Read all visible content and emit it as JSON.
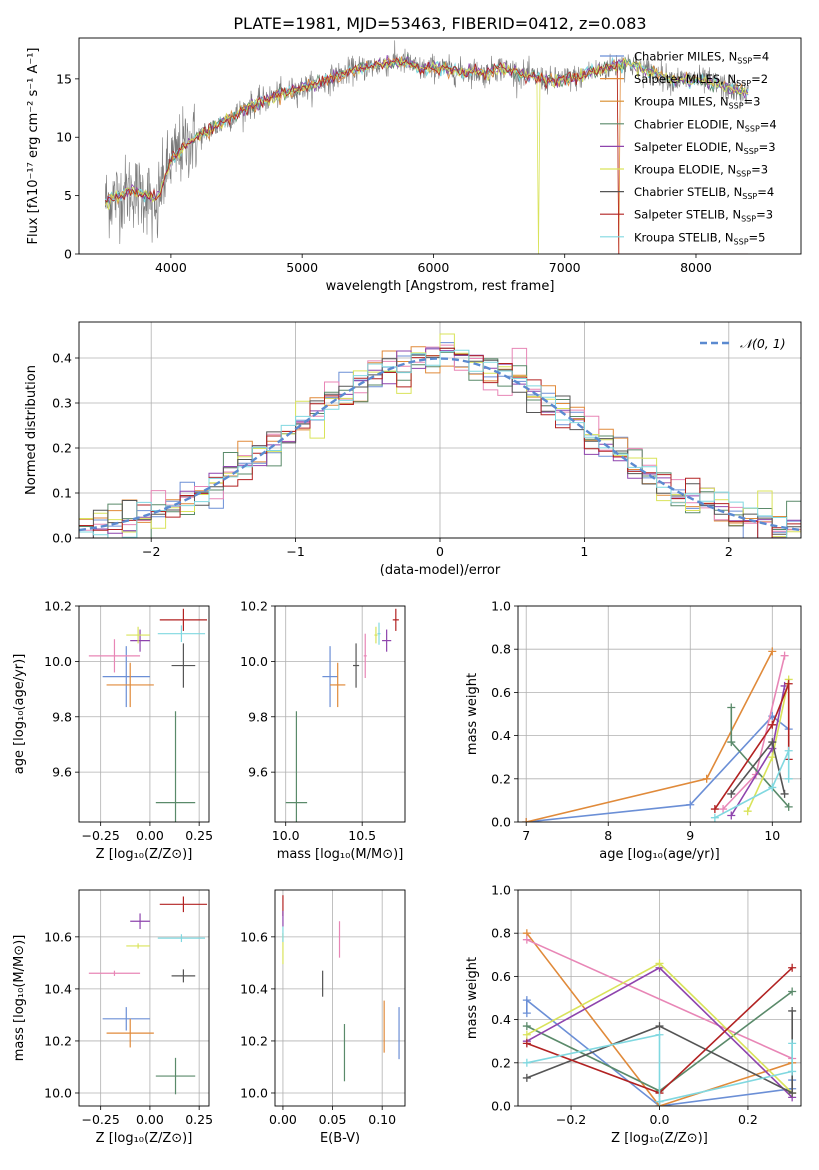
{
  "figure": {
    "title": "PLATE=1981, MJD=53463, FIBERID=0412, z=0.083"
  },
  "colors": {
    "chabrier_miles": "#6b8fd6",
    "salpeter_miles": "#e08a3a",
    "kroupa_miles": "#d98b2a",
    "chabrier_elodie": "#5a8a6a",
    "salpeter_elodie": "#8e44ad",
    "kroupa_elodie": "#d9e35a",
    "chabrier_stelib": "#555555",
    "salpeter_stelib": "#b22222",
    "kroupa_stelib": "#80d8e0",
    "pink": "#e886b6",
    "grid": "#b0b0b0"
  },
  "chart_data": [
    {
      "id": "spectrum",
      "type": "line",
      "xlabel": "wavelength [Angstrom, rest frame]",
      "ylabel": "Flux [fλ10⁻¹⁷ erg cm⁻² s⁻¹ A⁻¹]",
      "xlim": [
        3300,
        8800
      ],
      "ylim": [
        0,
        18.5
      ],
      "xticks": [
        "4000",
        "5000",
        "6000",
        "7000",
        "8000"
      ],
      "yticks": [
        "0",
        "5",
        "10",
        "15"
      ],
      "grid": false,
      "legend": "top-right",
      "legend_entries": [
        "Chabrier MILES, N_SSP=4",
        "Salpeter MILES, N_SSP=2",
        "Kroupa MILES, N_SSP=3",
        "Chabrier ELODIE, N_SSP=4",
        "Salpeter ELODIE, N_SSP=3",
        "Kroupa ELODIE, N_SSP=3",
        "Chabrier STELIB, N_SSP=4",
        "Salpeter STELIB, N_SSP=3",
        "Kroupa STELIB, N_SSP=5"
      ],
      "continuum": {
        "x": [
          3500,
          3600,
          3700,
          3800,
          3900,
          3950,
          4000,
          4100,
          4200,
          4300,
          4400,
          4500,
          4600,
          4700,
          4800,
          4900,
          5000,
          5100,
          5200,
          5300,
          5400,
          5500,
          5600,
          5700,
          5800,
          5900,
          6000,
          6100,
          6200,
          6300,
          6400,
          6500,
          6600,
          6700,
          6800,
          6900,
          7000,
          7100,
          7200,
          7300,
          7400,
          7500,
          7600,
          7700,
          7800,
          7900,
          8000,
          8100,
          8200,
          8300,
          8400
        ],
        "y": [
          4.5,
          5.0,
          5.5,
          5.0,
          4.8,
          6.5,
          8.0,
          9.3,
          10.0,
          10.6,
          11.3,
          12.0,
          12.7,
          13.1,
          13.6,
          13.9,
          14.2,
          14.5,
          14.9,
          15.4,
          15.8,
          16.0,
          16.2,
          16.5,
          16.4,
          15.8,
          16.0,
          15.8,
          15.6,
          15.7,
          15.4,
          16.0,
          15.7,
          15.3,
          15.1,
          14.8,
          15.0,
          15.1,
          15.6,
          15.8,
          16.2,
          16.3,
          15.8,
          15.5,
          15.0,
          14.9,
          15.0,
          14.7,
          14.4,
          14.0,
          13.7
        ]
      }
    },
    {
      "id": "residual_hist",
      "type": "line",
      "xlabel": "(data-model)/error",
      "ylabel": "Normed distribution",
      "xlim": [
        -2.5,
        2.5
      ],
      "ylim": [
        0,
        0.48
      ],
      "xticks": [
        "−2",
        "−1",
        "0",
        "1",
        "2"
      ],
      "yticks": [
        "0.0",
        "0.1",
        "0.2",
        "0.3",
        "0.4"
      ],
      "grid": true,
      "legend": "top-right",
      "legend_entries": [
        "𝒩(0, 1)"
      ],
      "bin_width": 0.1
    },
    {
      "id": "age_vs_Z",
      "type": "scatter",
      "xlabel": "Z [log₁₀(Z/Z⊙)]",
      "ylabel": "age  [log₁₀(age/yr)]",
      "xlim": [
        -0.36,
        0.3
      ],
      "ylim": [
        9.42,
        10.2
      ],
      "xticks": [
        "−0.25",
        "0.00",
        "0.25"
      ],
      "yticks": [
        "9.6",
        "9.8",
        "10.0",
        "10.2"
      ],
      "grid": true,
      "points": [
        {
          "x": -0.12,
          "y": 9.945,
          "xerr": 0.12,
          "yerr": 0.11,
          "color": "chabrier_miles"
        },
        {
          "x": -0.1,
          "y": 9.915,
          "xerr": 0.12,
          "yerr": 0.08,
          "color": "salpeter_miles"
        },
        {
          "x": -0.18,
          "y": 10.02,
          "xerr": 0.13,
          "yerr": 0.06,
          "color": "pink"
        },
        {
          "x": 0.13,
          "y": 9.49,
          "xerr": 0.1,
          "yerr": 0.33,
          "color": "chabrier_elodie"
        },
        {
          "x": -0.05,
          "y": 10.075,
          "xerr": 0.05,
          "yerr": 0.04,
          "color": "salpeter_elodie"
        },
        {
          "x": -0.06,
          "y": 10.095,
          "xerr": 0.06,
          "yerr": 0.03,
          "color": "kroupa_elodie"
        },
        {
          "x": 0.17,
          "y": 9.985,
          "xerr": 0.06,
          "yerr": 0.08,
          "color": "chabrier_stelib"
        },
        {
          "x": 0.17,
          "y": 10.15,
          "xerr": 0.12,
          "yerr": 0.04,
          "color": "salpeter_stelib"
        },
        {
          "x": 0.16,
          "y": 10.1,
          "xerr": 0.12,
          "yerr": 0.03,
          "color": "kroupa_stelib"
        }
      ]
    },
    {
      "id": "age_vs_mass",
      "type": "scatter",
      "xlabel": "mass [log₁₀(M/M⊙)]",
      "ylabel": "",
      "xlim": [
        9.93,
        10.78
      ],
      "ylim": [
        9.42,
        10.2
      ],
      "xticks": [
        "10.0",
        "10.5"
      ],
      "yticks": [
        "9.6",
        "9.8",
        "10.0",
        "10.2"
      ],
      "grid": true,
      "points": [
        {
          "x": 10.29,
          "y": 9.945,
          "xerr": 0.05,
          "yerr": 0.11,
          "color": "chabrier_miles"
        },
        {
          "x": 10.34,
          "y": 9.915,
          "xerr": 0.05,
          "yerr": 0.08,
          "color": "salpeter_miles"
        },
        {
          "x": 10.07,
          "y": 9.49,
          "xerr": 0.07,
          "yerr": 0.33,
          "color": "chabrier_elodie"
        },
        {
          "x": 10.46,
          "y": 9.985,
          "xerr": 0.02,
          "yerr": 0.08,
          "color": "chabrier_stelib"
        },
        {
          "x": 10.52,
          "y": 10.02,
          "xerr": 0.01,
          "yerr": 0.08,
          "color": "pink"
        },
        {
          "x": 10.66,
          "y": 10.075,
          "xerr": 0.03,
          "yerr": 0.04,
          "color": "salpeter_elodie"
        },
        {
          "x": 10.59,
          "y": 10.095,
          "xerr": 0.01,
          "yerr": 0.03,
          "color": "kroupa_elodie"
        },
        {
          "x": 10.61,
          "y": 10.1,
          "xerr": 0.01,
          "yerr": 0.04,
          "color": "kroupa_stelib"
        },
        {
          "x": 10.72,
          "y": 10.15,
          "xerr": 0.02,
          "yerr": 0.04,
          "color": "salpeter_stelib"
        }
      ]
    },
    {
      "id": "massweight_vs_age",
      "type": "line",
      "xlabel": "age  [log₁₀(age/yr)]",
      "ylabel": "mass weight",
      "xlim": [
        6.9,
        10.35
      ],
      "ylim": [
        0,
        1.0
      ],
      "xticks": [
        "7",
        "8",
        "9",
        "10"
      ],
      "yticks": [
        "0.0",
        "0.2",
        "0.4",
        "0.6",
        "0.8",
        "1.0"
      ],
      "grid": true,
      "series": [
        {
          "color": "chabrier_miles",
          "x": [
            7.0,
            9.0,
            10.0,
            10.2
          ],
          "y": [
            0.0,
            0.08,
            0.49,
            0.43
          ]
        },
        {
          "color": "salpeter_miles",
          "x": [
            7.0,
            9.2,
            10.0
          ],
          "y": [
            0.0,
            0.2,
            0.79
          ]
        },
        {
          "color": "pink",
          "x": [
            9.4,
            9.8,
            10.15
          ],
          "y": [
            0.06,
            0.22,
            0.77
          ]
        },
        {
          "color": "chabrier_elodie",
          "x": [
            9.5,
            9.5,
            10.2
          ],
          "y": [
            0.53,
            0.37,
            0.07
          ]
        },
        {
          "color": "salpeter_elodie",
          "x": [
            9.5,
            10.0,
            10.15
          ],
          "y": [
            0.03,
            0.34,
            0.63
          ]
        },
        {
          "color": "kroupa_elodie",
          "x": [
            9.7,
            10.0,
            10.2
          ],
          "y": [
            0.05,
            0.3,
            0.66
          ]
        },
        {
          "color": "chabrier_stelib",
          "x": [
            9.5,
            10.0,
            10.15
          ],
          "y": [
            0.13,
            0.37,
            0.13
          ]
        },
        {
          "color": "salpeter_stelib",
          "x": [
            9.3,
            10.0,
            10.2,
            10.2
          ],
          "y": [
            0.06,
            0.45,
            0.64,
            0.29
          ]
        },
        {
          "color": "kroupa_stelib",
          "x": [
            9.3,
            10.0,
            10.2,
            10.2
          ],
          "y": [
            0.02,
            0.16,
            0.33,
            0.2
          ]
        }
      ]
    },
    {
      "id": "mass_vs_Z",
      "type": "scatter",
      "xlabel": "Z [log₁₀(Z/Z⊙)]",
      "ylabel": "mass [log₁₀(M/M⊙)]",
      "xlim": [
        -0.36,
        0.3
      ],
      "ylim": [
        9.95,
        10.78
      ],
      "xticks": [
        "−0.25",
        "0.00",
        "0.25"
      ],
      "yticks": [
        "10.0",
        "10.2",
        "10.4",
        "10.6"
      ],
      "grid": true,
      "points": [
        {
          "x": -0.12,
          "y": 10.285,
          "xerr": 0.12,
          "yerr": 0.045,
          "color": "chabrier_miles"
        },
        {
          "x": -0.1,
          "y": 10.23,
          "xerr": 0.12,
          "yerr": 0.055,
          "color": "salpeter_miles"
        },
        {
          "x": -0.18,
          "y": 10.46,
          "xerr": 0.13,
          "yerr": 0.01,
          "color": "pink"
        },
        {
          "x": 0.13,
          "y": 10.065,
          "xerr": 0.1,
          "yerr": 0.07,
          "color": "chabrier_elodie"
        },
        {
          "x": -0.05,
          "y": 10.66,
          "xerr": 0.05,
          "yerr": 0.03,
          "color": "salpeter_elodie"
        },
        {
          "x": -0.06,
          "y": 10.565,
          "xerr": 0.06,
          "yerr": 0.01,
          "color": "kroupa_elodie"
        },
        {
          "x": 0.17,
          "y": 10.45,
          "xerr": 0.06,
          "yerr": 0.025,
          "color": "chabrier_stelib"
        },
        {
          "x": 0.17,
          "y": 10.725,
          "xerr": 0.12,
          "yerr": 0.03,
          "color": "salpeter_stelib"
        },
        {
          "x": 0.16,
          "y": 10.595,
          "xerr": 0.12,
          "yerr": 0.015,
          "color": "kroupa_stelib"
        }
      ]
    },
    {
      "id": "mass_vs_EBV",
      "type": "scatter",
      "xlabel": "E(B-V)",
      "ylabel": "",
      "xlim": [
        -0.008,
        0.123
      ],
      "ylim": [
        9.95,
        10.78
      ],
      "xticks": [
        "0.00",
        "0.05",
        "0.10"
      ],
      "yticks": [
        "10.0",
        "10.2",
        "10.4",
        "10.6"
      ],
      "grid": true,
      "points": [
        {
          "x": 0.117,
          "y": 10.23,
          "xerr": 0,
          "yerr": 0.1,
          "color": "chabrier_miles"
        },
        {
          "x": 0.102,
          "y": 10.255,
          "xerr": 0,
          "yerr": 0.1,
          "color": "salpeter_miles"
        },
        {
          "x": 0.062,
          "y": 10.155,
          "xerr": 0,
          "yerr": 0.11,
          "color": "chabrier_elodie"
        },
        {
          "x": 0.04,
          "y": 10.42,
          "xerr": 0,
          "yerr": 0.05,
          "color": "chabrier_stelib"
        },
        {
          "x": 0.057,
          "y": 10.59,
          "xerr": 0,
          "yerr": 0.07,
          "color": "pink"
        },
        {
          "x": 0.0,
          "y": 10.72,
          "xerr": 0,
          "yerr": 0.04,
          "color": "salpeter_stelib"
        },
        {
          "x": 0.0,
          "y": 10.555,
          "xerr": 0,
          "yerr": 0.06,
          "color": "kroupa_elodie"
        },
        {
          "x": 0.0,
          "y": 10.61,
          "xerr": 0,
          "yerr": 0.03,
          "color": "kroupa_stelib"
        },
        {
          "x": 0.0,
          "y": 10.67,
          "xerr": 0,
          "yerr": 0.03,
          "color": "salpeter_elodie"
        }
      ]
    },
    {
      "id": "massweight_vs_Z",
      "type": "line",
      "xlabel": "Z [log₁₀(Z/Z⊙)]",
      "ylabel": "mass weight",
      "xlim": [
        -0.32,
        0.32
      ],
      "ylim": [
        0,
        1.0
      ],
      "xticks": [
        "−0.2",
        "0.0",
        "0.2"
      ],
      "yticks": [
        "0.0",
        "0.2",
        "0.4",
        "0.6",
        "0.8",
        "1.0"
      ],
      "grid": true,
      "series": [
        {
          "color": "chabrier_miles",
          "x": [
            -0.3,
            -0.3,
            0.0,
            0.3,
            0.3
          ],
          "y": [
            0.43,
            0.49,
            0.0,
            0.08,
            0.12
          ]
        },
        {
          "color": "salpeter_miles",
          "x": [
            -0.3,
            0.0,
            0.3
          ],
          "y": [
            0.8,
            0.0,
            0.2
          ]
        },
        {
          "color": "pink",
          "x": [
            -0.3,
            0.3
          ],
          "y": [
            0.77,
            0.22
          ]
        },
        {
          "color": "chabrier_elodie",
          "x": [
            -0.3,
            0.0,
            0.3
          ],
          "y": [
            0.37,
            0.07,
            0.53
          ]
        },
        {
          "color": "salpeter_elodie",
          "x": [
            -0.3,
            0.0,
            0.3
          ],
          "y": [
            0.3,
            0.64,
            0.04
          ]
        },
        {
          "color": "kroupa_elodie",
          "x": [
            -0.3,
            0.0,
            0.3
          ],
          "y": [
            0.33,
            0.66,
            0.06
          ]
        },
        {
          "color": "chabrier_stelib",
          "x": [
            -0.3,
            0.0,
            0.3,
            0.3
          ],
          "y": [
            0.13,
            0.37,
            0.06,
            0.44
          ]
        },
        {
          "color": "salpeter_stelib",
          "x": [
            -0.3,
            0.0,
            0.3
          ],
          "y": [
            0.29,
            0.06,
            0.64
          ]
        },
        {
          "color": "kroupa_stelib",
          "x": [
            -0.3,
            0.0,
            0.0,
            0.3,
            0.3
          ],
          "y": [
            0.2,
            0.33,
            0.02,
            0.16,
            0.29
          ]
        }
      ]
    }
  ]
}
